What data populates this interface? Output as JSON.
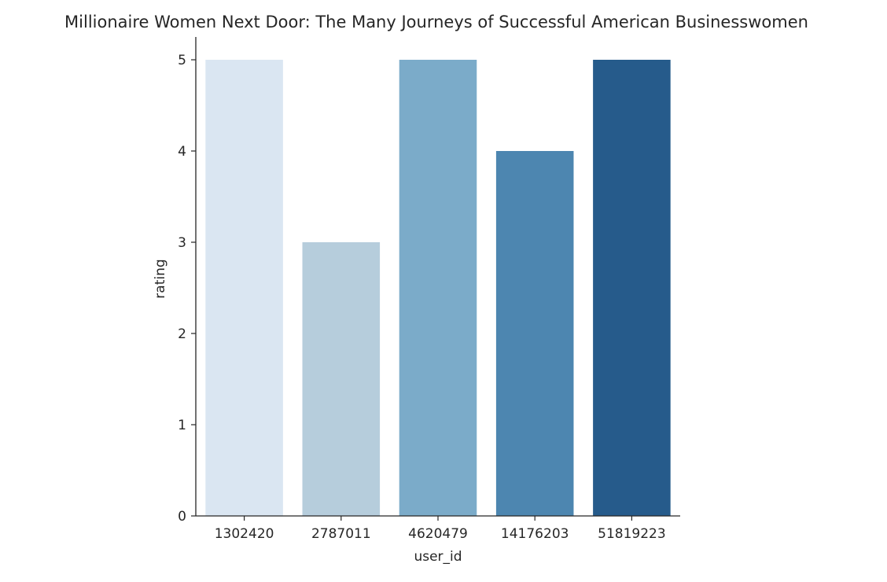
{
  "chart_data": {
    "type": "bar",
    "title": "Millionaire Women Next Door: The Many Journeys of Successful American Businesswomen",
    "xlabel": "user_id",
    "ylabel": "rating",
    "categories": [
      "1302420",
      "2787011",
      "4620479",
      "14176203",
      "51819223"
    ],
    "values": [
      5,
      3,
      5,
      4,
      5
    ],
    "ylim": [
      0,
      5.25
    ],
    "yticks": [
      0,
      1,
      2,
      3,
      4,
      5
    ],
    "grid": false,
    "legend": "none",
    "colors": [
      "#dae6f2",
      "#b6cddc",
      "#7babc9",
      "#4d86b0",
      "#265b8b"
    ]
  }
}
